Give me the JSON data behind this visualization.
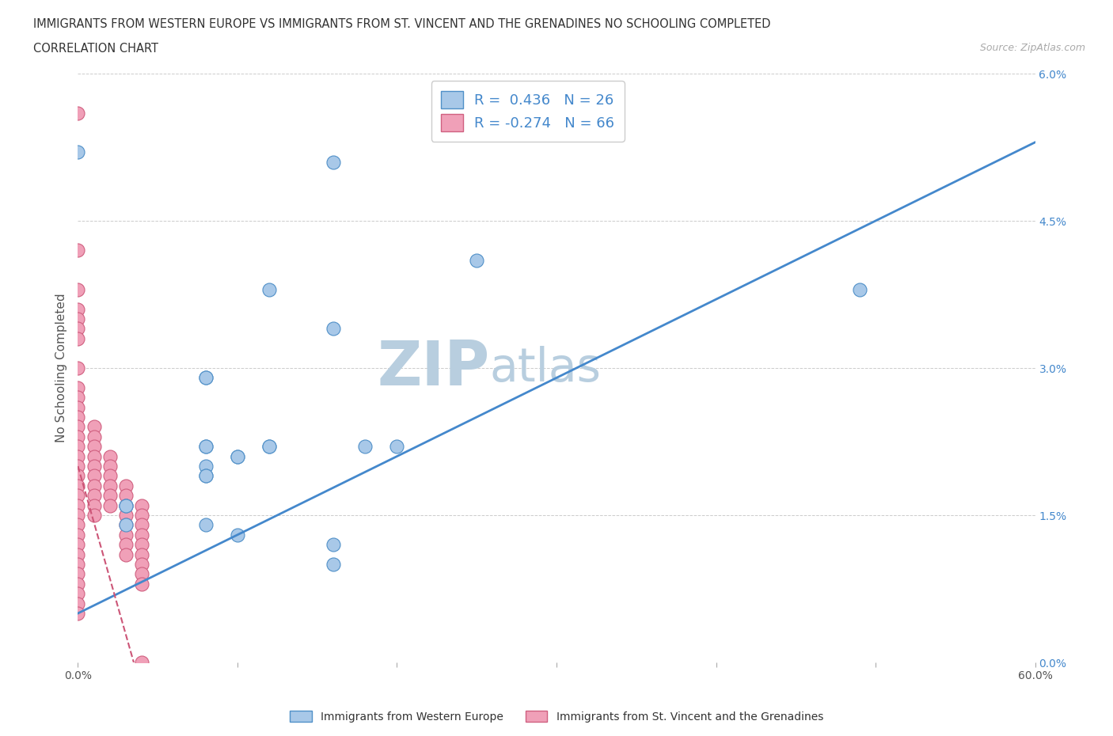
{
  "title_line1": "IMMIGRANTS FROM WESTERN EUROPE VS IMMIGRANTS FROM ST. VINCENT AND THE GRENADINES NO SCHOOLING COMPLETED",
  "title_line2": "CORRELATION CHART",
  "source_text": "Source: ZipAtlas.com",
  "ylabel": "No Schooling Completed",
  "watermark_zip": "ZIP",
  "watermark_atlas": "atlas",
  "xlim": [
    0.0,
    0.6
  ],
  "ylim": [
    0.0,
    0.06
  ],
  "xticks": [
    0.0,
    0.1,
    0.2,
    0.3,
    0.4,
    0.5,
    0.6
  ],
  "xticklabels_ends": [
    "0.0%",
    "60.0%"
  ],
  "yticks": [
    0.0,
    0.015,
    0.03,
    0.045,
    0.06
  ],
  "yticklabels": [
    "0.0%",
    "1.5%",
    "3.0%",
    "4.5%",
    "6.0%"
  ],
  "blue_scatter_x": [
    0.0,
    0.16,
    0.25,
    0.12,
    0.16,
    0.08,
    0.08,
    0.18,
    0.2,
    0.08,
    0.08,
    0.08,
    0.08,
    0.08,
    0.08,
    0.1,
    0.1,
    0.1,
    0.12,
    0.12,
    0.03,
    0.03,
    0.03,
    0.49,
    0.16,
    0.16
  ],
  "blue_scatter_y": [
    0.052,
    0.051,
    0.041,
    0.038,
    0.034,
    0.029,
    0.029,
    0.022,
    0.022,
    0.02,
    0.019,
    0.019,
    0.022,
    0.022,
    0.014,
    0.021,
    0.021,
    0.013,
    0.022,
    0.022,
    0.016,
    0.016,
    0.014,
    0.038,
    0.012,
    0.01
  ],
  "pink_scatter_x": [
    0.0,
    0.0,
    0.0,
    0.0,
    0.0,
    0.0,
    0.0,
    0.0,
    0.0,
    0.0,
    0.0,
    0.0,
    0.0,
    0.0,
    0.0,
    0.0,
    0.0,
    0.0,
    0.0,
    0.0,
    0.0,
    0.0,
    0.0,
    0.0,
    0.0,
    0.0,
    0.0,
    0.0,
    0.0,
    0.0,
    0.0,
    0.0,
    0.01,
    0.01,
    0.01,
    0.01,
    0.01,
    0.01,
    0.01,
    0.01,
    0.01,
    0.01,
    0.02,
    0.02,
    0.02,
    0.02,
    0.02,
    0.02,
    0.03,
    0.03,
    0.03,
    0.03,
    0.03,
    0.03,
    0.03,
    0.03,
    0.04,
    0.04,
    0.04,
    0.04,
    0.04,
    0.04,
    0.04,
    0.04,
    0.04,
    0.04
  ],
  "pink_scatter_y": [
    0.056,
    0.042,
    0.038,
    0.036,
    0.035,
    0.034,
    0.033,
    0.03,
    0.028,
    0.027,
    0.026,
    0.025,
    0.024,
    0.023,
    0.022,
    0.021,
    0.02,
    0.019,
    0.018,
    0.017,
    0.016,
    0.015,
    0.014,
    0.013,
    0.012,
    0.011,
    0.01,
    0.009,
    0.008,
    0.007,
    0.006,
    0.005,
    0.024,
    0.023,
    0.022,
    0.021,
    0.02,
    0.019,
    0.018,
    0.017,
    0.016,
    0.015,
    0.021,
    0.02,
    0.019,
    0.018,
    0.017,
    0.016,
    0.018,
    0.017,
    0.016,
    0.015,
    0.014,
    0.013,
    0.012,
    0.011,
    0.016,
    0.015,
    0.014,
    0.013,
    0.012,
    0.011,
    0.01,
    0.009,
    0.008,
    0.0
  ],
  "blue_color": "#A8C8E8",
  "pink_color": "#F0A0B8",
  "blue_edge_color": "#5090C8",
  "pink_edge_color": "#D06080",
  "blue_line_color": "#4488CC",
  "pink_line_color": "#CC5577",
  "pink_line_dash": true,
  "blue_trendline": [
    0.0,
    0.6,
    0.005,
    0.053
  ],
  "pink_trendline": [
    0.0,
    0.035,
    0.02,
    0.0
  ],
  "R_blue": 0.436,
  "N_blue": 26,
  "R_pink": -0.274,
  "N_pink": 66,
  "legend_labels": [
    "Immigrants from Western Europe",
    "Immigrants from St. Vincent and the Grenadines"
  ],
  "grid_color": "#CCCCCC",
  "watermark_color": "#B8CEDF",
  "background_color": "#FFFFFF"
}
